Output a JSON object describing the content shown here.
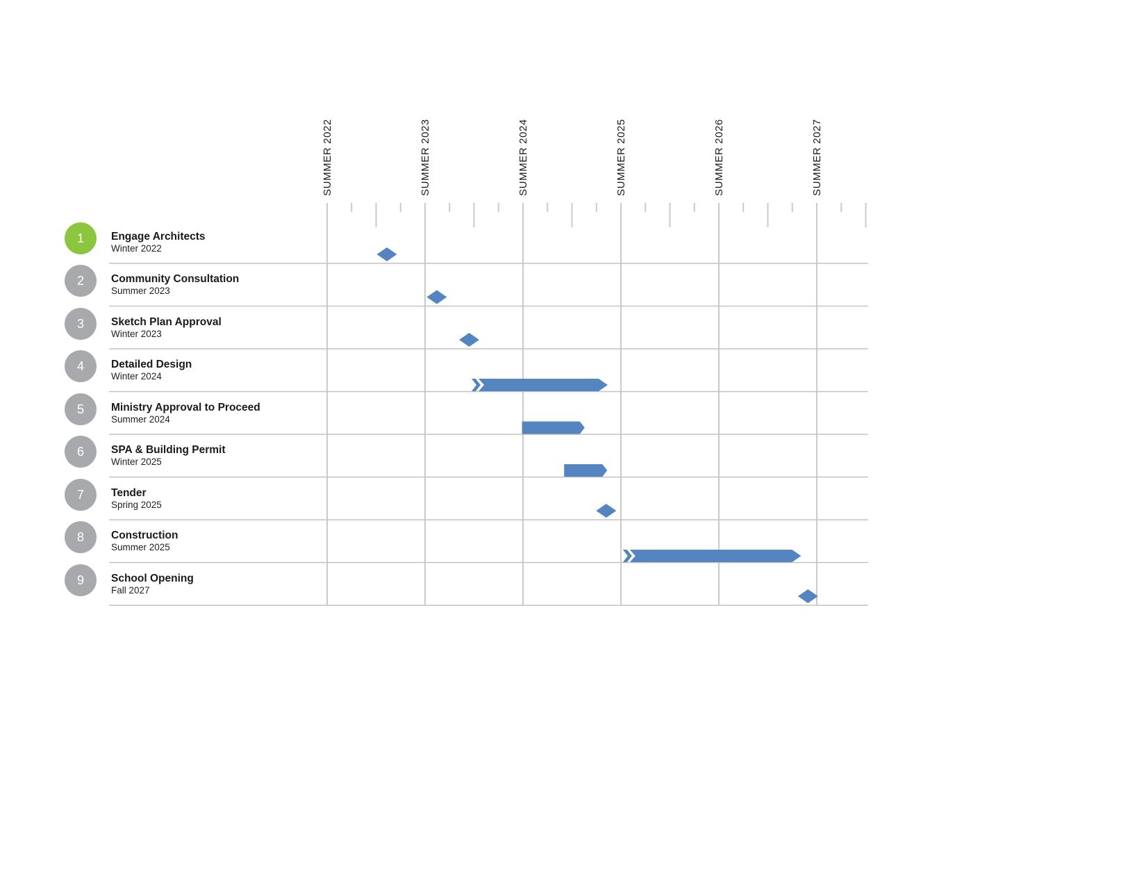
{
  "chart_data": {
    "type": "gantt",
    "title": "",
    "axis": {
      "column_labels": [
        "SUMMER 2022",
        "SUMMER 2023",
        "SUMMER 2024",
        "SUMMER 2025",
        "SUMMER 2026",
        "SUMMER 2027"
      ],
      "unit": "years-from-summer-2022",
      "range": [
        0,
        5.5
      ],
      "minor_ticks_per_year": 4,
      "grid": "vertical lines at each summer, quarterly ticks on top ruler"
    },
    "tasks": [
      {
        "num": "1",
        "title": "Engage Architects",
        "date": "Winter 2022",
        "marker": "milestone",
        "at": 0.61,
        "highlight": true
      },
      {
        "num": "2",
        "title": "Community Consultation",
        "date": "Summer 2023",
        "marker": "milestone",
        "at": 1.12,
        "highlight": false
      },
      {
        "num": "3",
        "title": "Sketch Plan Approval",
        "date": "Winter 2023",
        "marker": "milestone",
        "at": 1.45,
        "highlight": false
      },
      {
        "num": "4",
        "title": "Detailed Design",
        "date": "Winter 2024",
        "marker": "bar",
        "start": 1.475,
        "end": 2.865,
        "tail": "chevron",
        "head": "arrow",
        "highlight": false
      },
      {
        "num": "5",
        "title": "Ministry Approval to Proceed",
        "date": "Summer 2024",
        "marker": "bar",
        "start": 1.99,
        "end": 2.63,
        "tail": "flat",
        "head": "point",
        "highlight": false
      },
      {
        "num": "6",
        "title": "SPA & Building Permit",
        "date": "Winter 2025",
        "marker": "bar",
        "start": 2.42,
        "end": 2.86,
        "tail": "flat",
        "head": "point",
        "highlight": false
      },
      {
        "num": "7",
        "title": "Tender",
        "date": "Spring 2025",
        "marker": "milestone",
        "at": 2.85,
        "highlight": false
      },
      {
        "num": "8",
        "title": "Construction",
        "date": "Summer 2025",
        "marker": "bar",
        "start": 3.02,
        "end": 4.84,
        "tail": "chevron",
        "head": "arrow",
        "highlight": false
      },
      {
        "num": "9",
        "title": "School Opening",
        "date": "Fall 2027",
        "marker": "milestone",
        "at": 4.91,
        "highlight": false
      }
    ],
    "colors": {
      "bar": "#5585C1",
      "milestone": "#5585C1",
      "active_circle": "#8CC63F",
      "inactive_circle": "#A7A9AC",
      "grid_line": "#C9CACB",
      "row_line": "#C2C3C5",
      "text": "#1A1A1A",
      "circle_number": "#FFFFFF",
      "background": "#FFFFFF"
    }
  }
}
